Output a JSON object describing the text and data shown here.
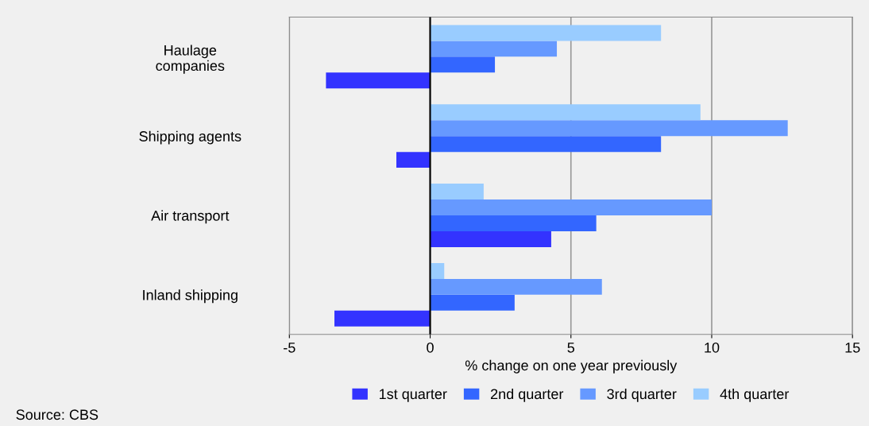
{
  "chart_data": {
    "type": "bar",
    "orientation": "horizontal",
    "categories": [
      "Haulage\ncompanies",
      "Shipping agents",
      "Air transport",
      "Inland shipping"
    ],
    "series": [
      {
        "name": "1st quarter",
        "color": "#3333ff",
        "values": [
          -3.7,
          -1.2,
          4.3,
          -3.4
        ]
      },
      {
        "name": "2nd quarter",
        "color": "#3366ff",
        "values": [
          2.3,
          8.2,
          5.9,
          3.0
        ]
      },
      {
        "name": "3rd quarter",
        "color": "#6699ff",
        "values": [
          4.5,
          12.7,
          10.0,
          6.1
        ]
      },
      {
        "name": "4th quarter",
        "color": "#99ccff",
        "values": [
          8.2,
          9.6,
          1.9,
          0.5
        ]
      }
    ],
    "xlabel": "% change on one year previously",
    "xlim": [
      -5,
      15
    ],
    "xticks": [
      -5,
      0,
      5,
      10,
      15
    ],
    "grid": "x",
    "legend": "bottom",
    "annotations": [
      "Source: CBS"
    ]
  }
}
